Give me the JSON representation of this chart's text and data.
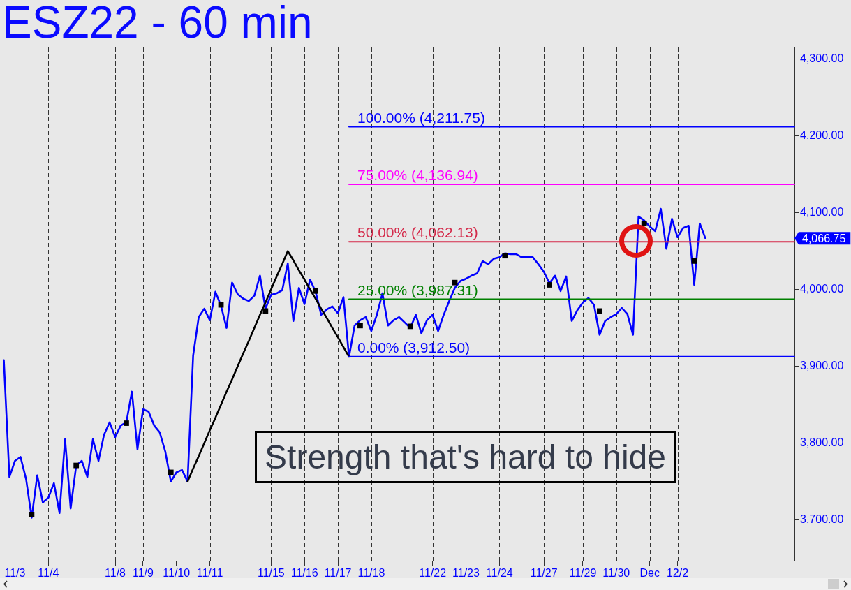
{
  "chart_data": {
    "type": "line",
    "title": "ESZ22 - 60 min",
    "marker": "none",
    "grid": "x",
    "annotations": [
      "Strength that's hard to hide",
      "4,066.75"
    ],
    "categories": [
      null,
      null,
      "11/3",
      null,
      null,
      null,
      null,
      null,
      "11/4",
      null,
      null,
      null,
      null,
      null,
      null,
      null,
      null,
      null,
      null,
      null,
      "11/8",
      null,
      null,
      null,
      null,
      "11/9",
      null,
      null,
      null,
      null,
      null,
      "11/10",
      null,
      null,
      null,
      null,
      null,
      "11/11",
      null,
      null,
      null,
      null,
      null,
      null,
      null,
      null,
      null,
      null,
      "11/15",
      null,
      null,
      null,
      null,
      null,
      "11/16",
      null,
      null,
      null,
      null,
      null,
      "11/17",
      null,
      null,
      null,
      null,
      null,
      "11/18",
      null,
      null,
      null,
      null,
      null,
      null,
      null,
      null,
      null,
      null,
      "11/22",
      null,
      null,
      null,
      null,
      null,
      "11/23",
      null,
      null,
      null,
      null,
      null,
      "11/24",
      null,
      null,
      null,
      null,
      null,
      null,
      null,
      "11/27",
      null,
      null,
      null,
      null,
      null,
      null,
      "11/29",
      null,
      null,
      null,
      null,
      null,
      "11/30",
      null,
      null,
      null,
      null,
      null,
      "Dec",
      null,
      null,
      null,
      null,
      "12/2",
      null,
      null,
      null,
      null,
      null,
      null,
      null,
      null,
      null,
      null,
      null,
      null,
      null,
      null,
      null,
      null,
      null,
      null,
      null,
      null,
      null
    ],
    "ylim": [
      3647,
      4315
    ],
    "yticks": [
      {
        "value": 3700,
        "label": "3,700.00"
      },
      {
        "value": 3800,
        "label": "3,800.00"
      },
      {
        "value": 3900,
        "label": "3,900.00"
      },
      {
        "value": 4000,
        "label": "4,000.00"
      },
      {
        "value": 4100,
        "label": "4,100.00"
      },
      {
        "value": 4200,
        "label": "4,200.00"
      },
      {
        "value": 4300,
        "label": "4,300.00"
      }
    ],
    "series": [
      {
        "color": "#0000ff",
        "values": [
          3908,
          3756,
          3777,
          3782,
          3753,
          3703,
          3758,
          3723,
          3729,
          3748,
          3709,
          3805,
          3715,
          3771,
          3777,
          3756,
          3805,
          3777,
          3811,
          3827,
          3808,
          3823,
          3827,
          3867,
          3792,
          3844,
          3841,
          3823,
          3814,
          3789,
          3750,
          3762,
          3765,
          3750,
          3914,
          3964,
          3975,
          3960,
          3997,
          3979,
          3950,
          4009,
          3994,
          3988,
          3985,
          3992,
          4018,
          3975,
          3993,
          3995,
          3999,
          4034,
          3959,
          4002,
          3981,
          4013,
          3997,
          3967,
          3974,
          3978,
          3969,
          3990,
          3912.5,
          3953,
          3960,
          3964,
          3946,
          3967,
          3995,
          3953,
          3960,
          3964,
          3957,
          3950,
          3967,
          3943,
          3960,
          3967,
          3946,
          3967,
          3985,
          4002,
          4011,
          4014,
          4018,
          4021,
          4037,
          4033,
          4040,
          4042,
          4047,
          4046,
          4046,
          4042,
          4042,
          4042,
          4033,
          4023,
          4008,
          4018,
          3998,
          4017,
          3959,
          3973,
          3983,
          3989,
          3980,
          3941,
          3959,
          3964,
          3968,
          3976,
          3968,
          3941,
          4095,
          4090,
          4082,
          4076,
          4105,
          4053,
          4092,
          4068,
          4080,
          4083,
          4006,
          4086,
          4066.75,
          null,
          null,
          null,
          null,
          null,
          null,
          null,
          null,
          null,
          null,
          null,
          null,
          null,
          null,
          null,
          null
        ]
      },
      {
        "type": "scatter",
        "marker": "square",
        "color": "#000000",
        "values": [
          null,
          null,
          null,
          null,
          null,
          3707,
          null,
          null,
          null,
          null,
          null,
          null,
          null,
          3771,
          null,
          null,
          null,
          null,
          null,
          null,
          null,
          null,
          3826,
          null,
          null,
          null,
          null,
          null,
          null,
          null,
          3762,
          null,
          null,
          null,
          null,
          null,
          null,
          null,
          null,
          3980,
          null,
          null,
          null,
          null,
          null,
          null,
          null,
          3972,
          null,
          null,
          null,
          null,
          null,
          null,
          null,
          null,
          3998,
          null,
          null,
          null,
          null,
          null,
          null,
          null,
          3953,
          null,
          null,
          null,
          null,
          null,
          null,
          null,
          null,
          3952,
          null,
          null,
          null,
          null,
          null,
          null,
          null,
          4009,
          null,
          null,
          null,
          null,
          null,
          null,
          null,
          null,
          4044,
          null,
          null,
          null,
          null,
          null,
          null,
          null,
          4006,
          null,
          null,
          null,
          null,
          null,
          null,
          null,
          null,
          3972,
          null,
          null,
          null,
          null,
          null,
          null,
          null,
          4086,
          null,
          null,
          null,
          null,
          null,
          null,
          null,
          null,
          4037,
          null,
          null,
          null,
          null,
          null,
          null,
          null,
          null,
          null,
          null,
          null,
          null,
          null,
          null,
          null,
          null,
          null,
          null
        ]
      },
      {
        "color": "#000000",
        "values": [
          null,
          null,
          null,
          null,
          null,
          null,
          null,
          null,
          null,
          null,
          null,
          null,
          null,
          null,
          null,
          null,
          null,
          null,
          null,
          null,
          null,
          null,
          null,
          null,
          null,
          null,
          null,
          null,
          null,
          null,
          null,
          null,
          null,
          3750,
          3767,
          3783,
          3800,
          3817,
          3833,
          3850,
          3867,
          3883,
          3900,
          3917,
          3933,
          3950,
          3967,
          3983,
          4000,
          4017,
          4033,
          4050,
          4038,
          4025,
          4013,
          4000,
          3988,
          3975,
          3963,
          3950,
          3938,
          3925,
          3912.5,
          null,
          null,
          null,
          null,
          null,
          null,
          null,
          null,
          null,
          null,
          null,
          null,
          null,
          null,
          null,
          null,
          null,
          null,
          null,
          null,
          null,
          null,
          null,
          null,
          null,
          null,
          null,
          null,
          null,
          null,
          null,
          null,
          null,
          null,
          null,
          null,
          null,
          null,
          null,
          null,
          null,
          null,
          null,
          null,
          null,
          null,
          null,
          null,
          null,
          null,
          null,
          null,
          null,
          null,
          null,
          null,
          null,
          null,
          null,
          null,
          null,
          null,
          null,
          null,
          null,
          null,
          null,
          null,
          null,
          null,
          null,
          null,
          null,
          null,
          null,
          null,
          null,
          null,
          null,
          null
        ]
      },
      {
        "name": "100.00% (4,211.75)",
        "color": "#0000ff",
        "values": [
          null,
          null,
          null,
          null,
          null,
          null,
          null,
          null,
          null,
          null,
          null,
          null,
          null,
          null,
          null,
          null,
          null,
          null,
          null,
          null,
          null,
          null,
          null,
          null,
          null,
          null,
          null,
          null,
          null,
          null,
          null,
          null,
          null,
          null,
          null,
          null,
          null,
          null,
          null,
          null,
          null,
          null,
          null,
          null,
          null,
          null,
          null,
          null,
          null,
          null,
          null,
          null,
          null,
          null,
          null,
          null,
          null,
          null,
          null,
          null,
          null,
          null,
          4211.75,
          4211.75,
          4211.75,
          4211.75,
          4211.75,
          4211.75,
          4211.75,
          4211.75,
          4211.75,
          4211.75,
          4211.75,
          4211.75,
          4211.75,
          4211.75,
          4211.75,
          4211.75,
          4211.75,
          4211.75,
          4211.75,
          4211.75,
          4211.75,
          4211.75,
          4211.75,
          4211.75,
          4211.75,
          4211.75,
          4211.75,
          4211.75,
          4211.75,
          4211.75,
          4211.75,
          4211.75,
          4211.75,
          4211.75,
          4211.75,
          4211.75,
          4211.75,
          4211.75,
          4211.75,
          4211.75,
          4211.75,
          4211.75,
          4211.75,
          4211.75,
          4211.75,
          4211.75,
          4211.75,
          4211.75,
          4211.75,
          4211.75,
          4211.75,
          4211.75,
          4211.75,
          4211.75,
          4211.75,
          4211.75,
          4211.75,
          4211.75,
          4211.75,
          4211.75,
          4211.75,
          4211.75,
          4211.75,
          4211.75,
          4211.75,
          4211.75,
          4211.75,
          4211.75,
          4211.75,
          4211.75,
          4211.75,
          4211.75,
          4211.75,
          4211.75,
          4211.75,
          4211.75,
          4211.75,
          4211.75,
          4211.75,
          4211.75,
          4211.75
        ]
      },
      {
        "name": "75.00% (4,136.94)",
        "color": "#ff00ff",
        "values": [
          null,
          null,
          null,
          null,
          null,
          null,
          null,
          null,
          null,
          null,
          null,
          null,
          null,
          null,
          null,
          null,
          null,
          null,
          null,
          null,
          null,
          null,
          null,
          null,
          null,
          null,
          null,
          null,
          null,
          null,
          null,
          null,
          null,
          null,
          null,
          null,
          null,
          null,
          null,
          null,
          null,
          null,
          null,
          null,
          null,
          null,
          null,
          null,
          null,
          null,
          null,
          null,
          null,
          null,
          null,
          null,
          null,
          null,
          null,
          null,
          null,
          null,
          4136.94,
          4136.94,
          4136.94,
          4136.94,
          4136.94,
          4136.94,
          4136.94,
          4136.94,
          4136.94,
          4136.94,
          4136.94,
          4136.94,
          4136.94,
          4136.94,
          4136.94,
          4136.94,
          4136.94,
          4136.94,
          4136.94,
          4136.94,
          4136.94,
          4136.94,
          4136.94,
          4136.94,
          4136.94,
          4136.94,
          4136.94,
          4136.94,
          4136.94,
          4136.94,
          4136.94,
          4136.94,
          4136.94,
          4136.94,
          4136.94,
          4136.94,
          4136.94,
          4136.94,
          4136.94,
          4136.94,
          4136.94,
          4136.94,
          4136.94,
          4136.94,
          4136.94,
          4136.94,
          4136.94,
          4136.94,
          4136.94,
          4136.94,
          4136.94,
          4136.94,
          4136.94,
          4136.94,
          4136.94,
          4136.94,
          4136.94,
          4136.94,
          4136.94,
          4136.94,
          4136.94,
          4136.94,
          4136.94,
          4136.94,
          4136.94,
          4136.94,
          4136.94,
          4136.94,
          4136.94,
          4136.94,
          4136.94,
          4136.94,
          4136.94,
          4136.94,
          4136.94,
          4136.94,
          4136.94,
          4136.94,
          4136.94,
          4136.94,
          4136.94
        ]
      },
      {
        "name": "50.00% (4,062.13)",
        "color": "#d42a4a",
        "values": [
          null,
          null,
          null,
          null,
          null,
          null,
          null,
          null,
          null,
          null,
          null,
          null,
          null,
          null,
          null,
          null,
          null,
          null,
          null,
          null,
          null,
          null,
          null,
          null,
          null,
          null,
          null,
          null,
          null,
          null,
          null,
          null,
          null,
          null,
          null,
          null,
          null,
          null,
          null,
          null,
          null,
          null,
          null,
          null,
          null,
          null,
          null,
          null,
          null,
          null,
          null,
          null,
          null,
          null,
          null,
          null,
          null,
          null,
          null,
          null,
          null,
          null,
          4062.13,
          4062.13,
          4062.13,
          4062.13,
          4062.13,
          4062.13,
          4062.13,
          4062.13,
          4062.13,
          4062.13,
          4062.13,
          4062.13,
          4062.13,
          4062.13,
          4062.13,
          4062.13,
          4062.13,
          4062.13,
          4062.13,
          4062.13,
          4062.13,
          4062.13,
          4062.13,
          4062.13,
          4062.13,
          4062.13,
          4062.13,
          4062.13,
          4062.13,
          4062.13,
          4062.13,
          4062.13,
          4062.13,
          4062.13,
          4062.13,
          4062.13,
          4062.13,
          4062.13,
          4062.13,
          4062.13,
          4062.13,
          4062.13,
          4062.13,
          4062.13,
          4062.13,
          4062.13,
          4062.13,
          4062.13,
          4062.13,
          4062.13,
          4062.13,
          4062.13,
          4062.13,
          4062.13,
          4062.13,
          4062.13,
          4062.13,
          4062.13,
          4062.13,
          4062.13,
          4062.13,
          4062.13,
          4062.13,
          4062.13,
          4062.13,
          4062.13,
          4062.13,
          4062.13,
          4062.13,
          4062.13,
          4062.13,
          4062.13,
          4062.13,
          4062.13,
          4062.13,
          4062.13,
          4062.13,
          4062.13,
          4062.13,
          4062.13,
          4062.13
        ]
      },
      {
        "name": "25.00% (3,987.31)",
        "color": "#008000",
        "values": [
          null,
          null,
          null,
          null,
          null,
          null,
          null,
          null,
          null,
          null,
          null,
          null,
          null,
          null,
          null,
          null,
          null,
          null,
          null,
          null,
          null,
          null,
          null,
          null,
          null,
          null,
          null,
          null,
          null,
          null,
          null,
          null,
          null,
          null,
          null,
          null,
          null,
          null,
          null,
          null,
          null,
          null,
          null,
          null,
          null,
          null,
          null,
          null,
          null,
          null,
          null,
          null,
          null,
          null,
          null,
          null,
          null,
          null,
          null,
          null,
          null,
          null,
          3987.31,
          3987.31,
          3987.31,
          3987.31,
          3987.31,
          3987.31,
          3987.31,
          3987.31,
          3987.31,
          3987.31,
          3987.31,
          3987.31,
          3987.31,
          3987.31,
          3987.31,
          3987.31,
          3987.31,
          3987.31,
          3987.31,
          3987.31,
          3987.31,
          3987.31,
          3987.31,
          3987.31,
          3987.31,
          3987.31,
          3987.31,
          3987.31,
          3987.31,
          3987.31,
          3987.31,
          3987.31,
          3987.31,
          3987.31,
          3987.31,
          3987.31,
          3987.31,
          3987.31,
          3987.31,
          3987.31,
          3987.31,
          3987.31,
          3987.31,
          3987.31,
          3987.31,
          3987.31,
          3987.31,
          3987.31,
          3987.31,
          3987.31,
          3987.31,
          3987.31,
          3987.31,
          3987.31,
          3987.31,
          3987.31,
          3987.31,
          3987.31,
          3987.31,
          3987.31,
          3987.31,
          3987.31,
          3987.31,
          3987.31,
          3987.31,
          3987.31,
          3987.31,
          3987.31,
          3987.31,
          3987.31,
          3987.31,
          3987.31,
          3987.31,
          3987.31,
          3987.31,
          3987.31,
          3987.31,
          3987.31,
          3987.31,
          3987.31,
          3987.31
        ]
      },
      {
        "name": "0.00% (3,912.50)",
        "color": "#0000ff",
        "values": [
          null,
          null,
          null,
          null,
          null,
          null,
          null,
          null,
          null,
          null,
          null,
          null,
          null,
          null,
          null,
          null,
          null,
          null,
          null,
          null,
          null,
          null,
          null,
          null,
          null,
          null,
          null,
          null,
          null,
          null,
          null,
          null,
          null,
          null,
          null,
          null,
          null,
          null,
          null,
          null,
          null,
          null,
          null,
          null,
          null,
          null,
          null,
          null,
          null,
          null,
          null,
          null,
          null,
          null,
          null,
          null,
          null,
          null,
          null,
          null,
          null,
          null,
          3912.5,
          3912.5,
          3912.5,
          3912.5,
          3912.5,
          3912.5,
          3912.5,
          3912.5,
          3912.5,
          3912.5,
          3912.5,
          3912.5,
          3912.5,
          3912.5,
          3912.5,
          3912.5,
          3912.5,
          3912.5,
          3912.5,
          3912.5,
          3912.5,
          3912.5,
          3912.5,
          3912.5,
          3912.5,
          3912.5,
          3912.5,
          3912.5,
          3912.5,
          3912.5,
          3912.5,
          3912.5,
          3912.5,
          3912.5,
          3912.5,
          3912.5,
          3912.5,
          3912.5,
          3912.5,
          3912.5,
          3912.5,
          3912.5,
          3912.5,
          3912.5,
          3912.5,
          3912.5,
          3912.5,
          3912.5,
          3912.5,
          3912.5,
          3912.5,
          3912.5,
          3912.5,
          3912.5,
          3912.5,
          3912.5,
          3912.5,
          3912.5,
          3912.5,
          3912.5,
          3912.5,
          3912.5,
          3912.5,
          3912.5,
          3912.5,
          3912.5,
          3912.5,
          3912.5,
          3912.5,
          3912.5,
          3912.5,
          3912.5,
          3912.5,
          3912.5,
          3912.5,
          3912.5,
          3912.5,
          3912.5,
          3912.5,
          3912.5,
          3912.5
        ]
      }
    ]
  }
}
